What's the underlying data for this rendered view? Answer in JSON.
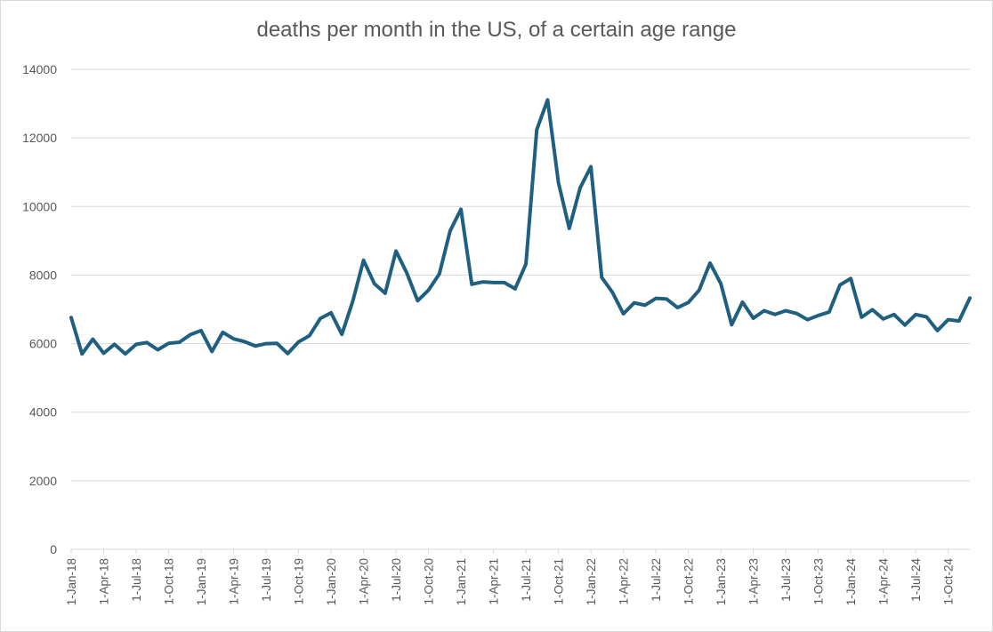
{
  "chart_data": {
    "type": "line",
    "title": "deaths per month in the US, of a certain age range",
    "xlabel": "",
    "ylabel": "",
    "ylim": [
      0,
      14000
    ],
    "y_ticks": [
      "0",
      "2000",
      "4000",
      "6000",
      "8000",
      "10000",
      "12000",
      "14000"
    ],
    "x_tick_labels": [
      "1-Jan-18",
      "1-Apr-18",
      "1-Jul-18",
      "1-Oct-18",
      "1-Jan-19",
      "1-Apr-19",
      "1-Jul-19",
      "1-Oct-19",
      "1-Jan-20",
      "1-Apr-20",
      "1-Jul-20",
      "1-Oct-20",
      "1-Jan-21",
      "1-Apr-21",
      "1-Jul-21",
      "1-Oct-21",
      "1-Jan-22",
      "1-Apr-22",
      "1-Jul-22",
      "1-Oct-22",
      "1-Jan-23",
      "1-Apr-23",
      "1-Jul-23",
      "1-Oct-23",
      "1-Jan-24",
      "1-Apr-24",
      "1-Jul-24",
      "1-Oct-24"
    ],
    "x_range": [
      "2018-01",
      "2024-12"
    ],
    "grid": true,
    "legend": "none",
    "series": [
      {
        "color": "#1f5f7f",
        "x_months": [
          "2018-01",
          "2018-02",
          "2018-03",
          "2018-04",
          "2018-05",
          "2018-06",
          "2018-07",
          "2018-08",
          "2018-09",
          "2018-10",
          "2018-11",
          "2018-12",
          "2019-01",
          "2019-02",
          "2019-03",
          "2019-04",
          "2019-05",
          "2019-06",
          "2019-07",
          "2019-08",
          "2019-09",
          "2019-10",
          "2019-11",
          "2019-12",
          "2020-01",
          "2020-02",
          "2020-03",
          "2020-04",
          "2020-05",
          "2020-06",
          "2020-07",
          "2020-08",
          "2020-09",
          "2020-10",
          "2020-11",
          "2020-12",
          "2021-01",
          "2021-02",
          "2021-03",
          "2021-04",
          "2021-05",
          "2021-06",
          "2021-07",
          "2021-08",
          "2021-09",
          "2021-10",
          "2021-11",
          "2021-12",
          "2022-01",
          "2022-02",
          "2022-03",
          "2022-04",
          "2022-05",
          "2022-06",
          "2022-07",
          "2022-08",
          "2022-09",
          "2022-10",
          "2022-11",
          "2022-12",
          "2023-01",
          "2023-02",
          "2023-03",
          "2023-04",
          "2023-05",
          "2023-06",
          "2023-07",
          "2023-08",
          "2023-09",
          "2023-10",
          "2023-11",
          "2023-12",
          "2024-01",
          "2024-02",
          "2024-03",
          "2024-04",
          "2024-05",
          "2024-06",
          "2024-07",
          "2024-08",
          "2024-09",
          "2024-10",
          "2024-11",
          "2024-12"
        ],
        "values": [
          6760,
          5700,
          6130,
          5720,
          5980,
          5700,
          5980,
          6030,
          5820,
          6010,
          6040,
          6260,
          6380,
          5770,
          6330,
          6140,
          6060,
          5930,
          6000,
          6010,
          5710,
          6050,
          6230,
          6730,
          6900,
          6270,
          7230,
          8430,
          7750,
          7470,
          8700,
          8060,
          7250,
          7560,
          8030,
          9290,
          9920,
          7730,
          7800,
          7780,
          7780,
          7600,
          8320,
          12240,
          13110,
          10700,
          9360,
          10540,
          11160,
          7930,
          7490,
          6870,
          7190,
          7120,
          7320,
          7300,
          7050,
          7200,
          7560,
          8350,
          7750,
          6550,
          7210,
          6740,
          6960,
          6850,
          6960,
          6880,
          6700,
          6820,
          6920,
          7710,
          7900,
          6770,
          6990,
          6720,
          6850,
          6540,
          6850,
          6780,
          6380,
          6700,
          6660,
          7330
        ]
      }
    ]
  }
}
